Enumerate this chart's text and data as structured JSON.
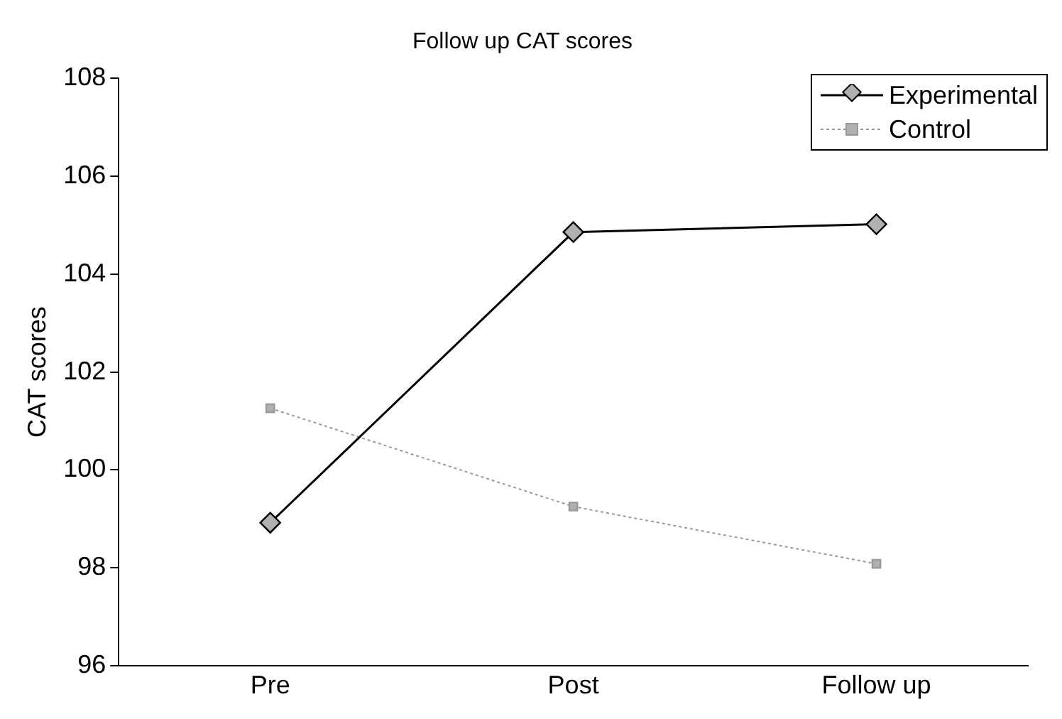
{
  "chart_data": {
    "type": "line",
    "title": "Follow up CAT scores",
    "ylabel": "CAT scores",
    "categories": [
      "Pre",
      "Post",
      "Follow up"
    ],
    "series": [
      {
        "name": "Experimental",
        "color": "#000000",
        "values": [
          98.92,
          104.86,
          105.02
        ],
        "marker": "diamond",
        "line_style": "solid"
      },
      {
        "name": "Control",
        "color": "#999999",
        "values": [
          101.26,
          99.25,
          98.08
        ],
        "marker": "square",
        "line_style": "dotted"
      }
    ],
    "ylim": [
      96,
      108
    ],
    "yticks": [
      96,
      98,
      100,
      102,
      104,
      106,
      108
    ],
    "grid": false,
    "legend": "top right"
  }
}
